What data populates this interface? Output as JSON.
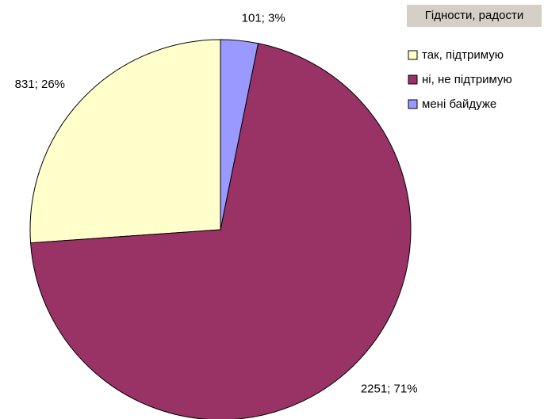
{
  "chart_data": {
    "type": "pie",
    "title": "Гідности, радости",
    "categories": [
      "так, підтримую",
      "ні, не підтримую",
      "мені байдуже"
    ],
    "values": [
      831,
      2251,
      101
    ],
    "value_labels": [
      "831; 26%",
      "2251; 71%",
      "101; 3%"
    ],
    "colors": [
      "#ffffcc",
      "#993366",
      "#9999ff"
    ]
  }
}
